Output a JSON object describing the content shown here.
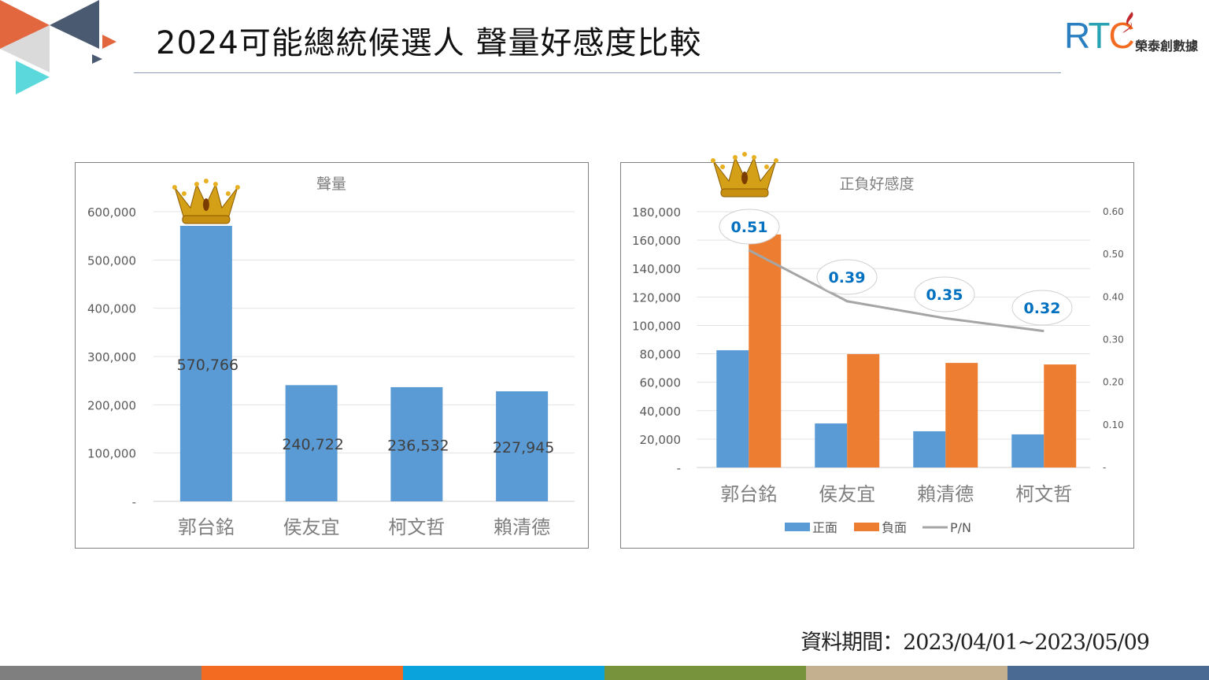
{
  "header": {
    "title": "2024可能總統候選人 聲量好感度比較",
    "logo_text": "RTC",
    "logo_cn": "榮泰創數據"
  },
  "footer": {
    "period": "資料期間：2023/04/01~2023/05/09",
    "strip_colors": [
      "#7f7f7f",
      "#f26b21",
      "#0ba3dc",
      "#77933c",
      "#c4b08f",
      "#4a6a94"
    ]
  },
  "colors": {
    "positive": "#5b9bd5",
    "negative": "#ed7d31",
    "pn_line": "#a5a5a5",
    "pn_label": "#0070c0",
    "crown": "#d4a017"
  },
  "chart_data": [
    {
      "type": "bar",
      "title": "聲量",
      "categories": [
        "郭台銘",
        "侯友宜",
        "柯文哲",
        "賴清德"
      ],
      "values": [
        570766,
        240722,
        236532,
        227945
      ],
      "data_labels": [
        "570,766",
        "240,722",
        "236,532",
        "227,945"
      ],
      "ylim": [
        0,
        600000
      ],
      "yticks": [
        "-",
        "100,000",
        "200,000",
        "300,000",
        "400,000",
        "500,000",
        "600,000"
      ],
      "grid": true,
      "annotation": "crown-icon over 郭台銘"
    },
    {
      "type": "bar+line",
      "title": "正負好感度",
      "categories": [
        "郭台銘",
        "侯友宜",
        "賴清德",
        "柯文哲"
      ],
      "series": [
        {
          "name": "正面",
          "type": "bar",
          "values": [
            82500,
            31000,
            25500,
            23300
          ]
        },
        {
          "name": "負面",
          "type": "bar",
          "values": [
            164000,
            79800,
            73600,
            72500
          ]
        },
        {
          "name": "P/N",
          "type": "line",
          "axis": "right",
          "values": [
            0.51,
            0.39,
            0.35,
            0.32
          ],
          "data_labels": [
            "0.51",
            "0.39",
            "0.35",
            "0.32"
          ]
        }
      ],
      "ylim": [
        0,
        180000
      ],
      "yticks": [
        "-",
        "20,000",
        "40,000",
        "60,000",
        "80,000",
        "100,000",
        "120,000",
        "140,000",
        "160,000",
        "180,000"
      ],
      "y2lim": [
        0,
        0.6
      ],
      "y2ticks": [
        "-",
        "0.10",
        "0.20",
        "0.30",
        "0.40",
        "0.50",
        "0.60"
      ],
      "grid": true,
      "legend": "bottom",
      "annotation": "crown-icon over 郭台銘"
    }
  ]
}
